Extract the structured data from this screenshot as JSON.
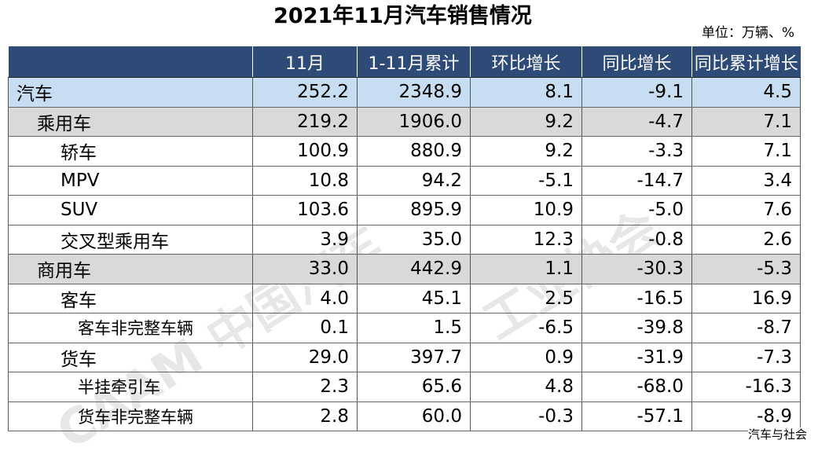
{
  "title": "2021年11月汽车销售情况",
  "unit": "单位：万辆、%",
  "headers": [
    "",
    "11月",
    "1-11月累计",
    "环比增长",
    "同比增长",
    "同比累计增长"
  ],
  "rows": [
    {
      "name": "汽车",
      "level": 0,
      "values": [
        "252.2",
        "2348.9",
        "8.1",
        "-9.1",
        "4.5"
      ]
    },
    {
      "name": "乘用车",
      "level": 1,
      "values": [
        "219.2",
        "1906.0",
        "9.2",
        "-4.7",
        "7.1"
      ]
    },
    {
      "name": "轿车",
      "level": 2,
      "values": [
        "100.9",
        "880.9",
        "9.2",
        "-3.3",
        "7.1"
      ]
    },
    {
      "name": "MPV",
      "level": 2,
      "values": [
        "10.8",
        "94.2",
        "-5.1",
        "-14.7",
        "3.4"
      ]
    },
    {
      "name": "SUV",
      "level": 2,
      "values": [
        "103.6",
        "895.9",
        "10.9",
        "-5.0",
        "7.6"
      ]
    },
    {
      "name": "交叉型乘用车",
      "level": 2,
      "values": [
        "3.9",
        "35.0",
        "12.3",
        "-0.8",
        "2.6"
      ]
    },
    {
      "name": "商用车",
      "level": 1,
      "values": [
        "33.0",
        "442.9",
        "1.1",
        "-30.3",
        "-5.3"
      ]
    },
    {
      "name": "客车",
      "level": 2,
      "values": [
        "4.0",
        "45.1",
        "2.5",
        "-16.5",
        "16.9"
      ]
    },
    {
      "name": "客车非完整车辆",
      "level": 3,
      "values": [
        "0.1",
        "1.5",
        "-6.5",
        "-39.8",
        "-8.7"
      ]
    },
    {
      "name": "货车",
      "level": 2,
      "values": [
        "29.0",
        "397.7",
        "0.9",
        "-31.9",
        "-7.3"
      ]
    },
    {
      "name": "半挂牵引车",
      "level": 3,
      "values": [
        "2.3",
        "65.6",
        "4.8",
        "-68.0",
        "-16.3"
      ]
    },
    {
      "name": "货车非完整车辆",
      "level": 3,
      "values": [
        "2.8",
        "60.0",
        "-0.3",
        "-57.1",
        "-8.9"
      ]
    }
  ],
  "footer": "汽车与社会"
}
